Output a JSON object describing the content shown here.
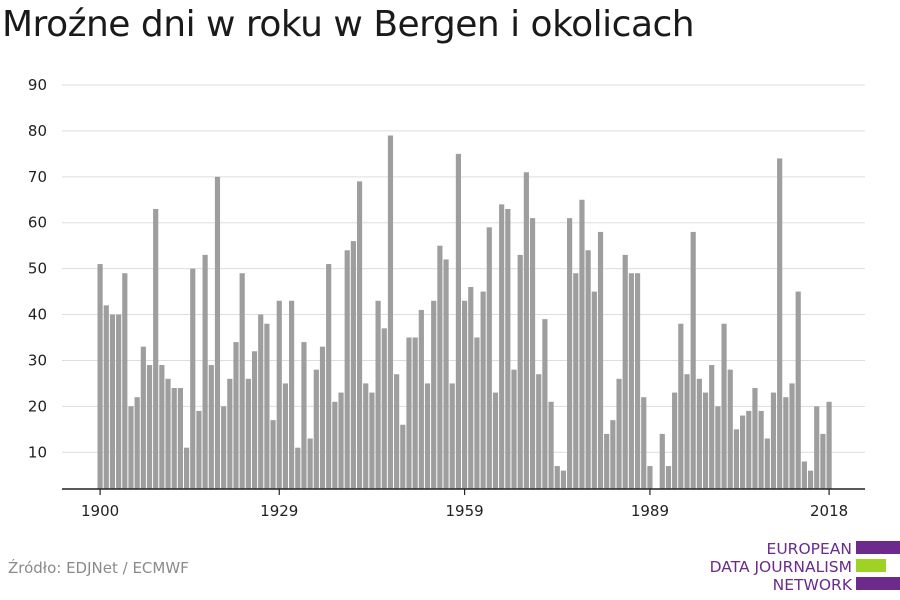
{
  "title": "Mroźne dni w roku w Bergen i okolicach",
  "source": "Źródło: EDJNet / ECMWF",
  "logo": {
    "lines": [
      "EUROPEAN",
      "DATA JOURNALISM",
      "NETWORK"
    ],
    "colors": {
      "purple": "#6b2a8c",
      "green": "#9ed326"
    }
  },
  "chart_data": {
    "type": "bar",
    "bar_color": "#9e9e9e",
    "grid": true,
    "ylim": [
      2,
      90
    ],
    "yticks": [
      10,
      20,
      30,
      40,
      50,
      60,
      70,
      80,
      90
    ],
    "xticks": [
      1900,
      1929,
      1959,
      1989,
      2018
    ],
    "x": [
      1900,
      1901,
      1902,
      1903,
      1904,
      1905,
      1906,
      1907,
      1908,
      1909,
      1910,
      1911,
      1912,
      1913,
      1914,
      1915,
      1916,
      1917,
      1918,
      1919,
      1920,
      1921,
      1922,
      1923,
      1924,
      1925,
      1926,
      1927,
      1928,
      1929,
      1930,
      1931,
      1932,
      1933,
      1934,
      1935,
      1936,
      1937,
      1938,
      1939,
      1940,
      1941,
      1942,
      1943,
      1944,
      1945,
      1946,
      1947,
      1948,
      1949,
      1950,
      1951,
      1952,
      1953,
      1954,
      1955,
      1956,
      1957,
      1958,
      1959,
      1960,
      1961,
      1962,
      1963,
      1964,
      1965,
      1966,
      1967,
      1968,
      1969,
      1970,
      1971,
      1972,
      1973,
      1974,
      1975,
      1976,
      1977,
      1978,
      1979,
      1980,
      1981,
      1982,
      1983,
      1984,
      1985,
      1986,
      1987,
      1988,
      1989,
      1990,
      1991,
      1992,
      1993,
      1994,
      1995,
      1996,
      1997,
      1998,
      1999,
      2000,
      2001,
      2002,
      2003,
      2004,
      2005,
      2006,
      2007,
      2008,
      2009,
      2010,
      2011,
      2012,
      2013,
      2014,
      2015,
      2016,
      2017,
      2018
    ],
    "values": [
      51,
      42,
      40,
      40,
      49,
      20,
      22,
      33,
      29,
      63,
      29,
      26,
      24,
      24,
      11,
      50,
      19,
      53,
      29,
      70,
      20,
      26,
      34,
      49,
      26,
      32,
      40,
      38,
      17,
      43,
      25,
      43,
      11,
      34,
      13,
      28,
      33,
      51,
      21,
      23,
      54,
      56,
      69,
      25,
      23,
      43,
      37,
      79,
      27,
      16,
      35,
      35,
      41,
      25,
      43,
      55,
      52,
      25,
      75,
      43,
      46,
      35,
      45,
      59,
      23,
      64,
      63,
      28,
      53,
      71,
      61,
      27,
      39,
      21,
      7,
      6,
      61,
      49,
      65,
      54,
      45,
      58,
      14,
      17,
      26,
      53,
      49,
      49,
      22,
      7,
      2,
      14,
      7,
      23,
      38,
      27,
      58,
      26,
      23,
      29,
      20,
      38,
      28,
      15,
      18,
      19,
      24,
      19,
      13,
      23,
      74,
      22,
      25,
      45,
      8,
      6,
      20,
      14,
      21
    ]
  }
}
